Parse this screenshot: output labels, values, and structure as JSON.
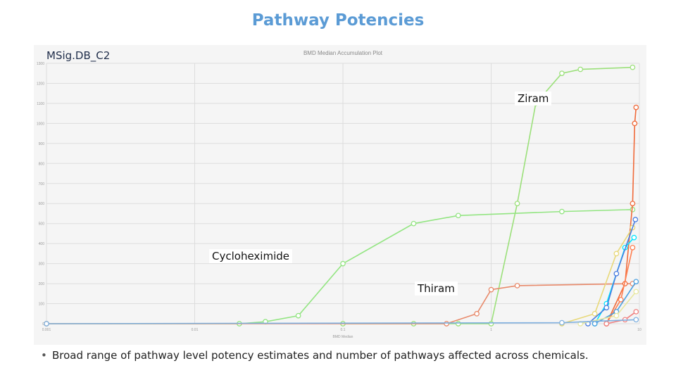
{
  "slide": {
    "title": "Pathway Potencies",
    "set_label": "MSig.DB_C2",
    "bullet": "Broad range of pathway level potency estimates and number of pathways affected across chemicals."
  },
  "chart_data": {
    "type": "line",
    "title": "BMD Median Accumulation Plot",
    "xlabel": "BMD Median",
    "ylabel": "",
    "x_scale": "log",
    "xlim": [
      0.001,
      10
    ],
    "ylim": [
      0,
      1300
    ],
    "grid": true,
    "annotations": [
      "Ziram",
      "Cycloheximide",
      "Thiram"
    ],
    "series": [
      {
        "name": "Ziram",
        "color": "#9be07a",
        "x": [
          0.1,
          0.3,
          0.6,
          1.0,
          1.5,
          2.0,
          3.0,
          4.0,
          9.0
        ],
        "y": [
          0,
          0,
          0,
          0,
          600,
          1100,
          1250,
          1270,
          1280
        ]
      },
      {
        "name": "Cycloheximide",
        "color": "#93e582",
        "x": [
          0.001,
          0.02,
          0.03,
          0.05,
          0.1,
          0.3,
          0.6,
          3.0,
          9.0
        ],
        "y": [
          0,
          0,
          10,
          40,
          300,
          500,
          540,
          560,
          570
        ]
      },
      {
        "name": "Thiram",
        "color": "#e8896a",
        "x": [
          0.001,
          0.5,
          0.8,
          1.0,
          1.5,
          9.0
        ],
        "y": [
          0,
          0,
          50,
          170,
          190,
          200
        ]
      },
      {
        "color": "#f06a3a",
        "x": [
          6.0,
          8.0,
          9.0,
          9.3,
          9.5
        ],
        "y": [
          0,
          200,
          600,
          1000,
          1080
        ]
      },
      {
        "color": "#e8d878",
        "x": [
          3.0,
          5.0,
          7.0,
          9.0
        ],
        "y": [
          0,
          50,
          350,
          480
        ]
      },
      {
        "color": "#00e5ff",
        "x": [
          5.0,
          6.0,
          8.0,
          9.2
        ],
        "y": [
          0,
          100,
          380,
          430
        ]
      },
      {
        "color": "#4a7de0",
        "x": [
          4.5,
          6.0,
          7.0,
          9.4
        ],
        "y": [
          0,
          80,
          250,
          520
        ]
      },
      {
        "color": "#ff7f50",
        "x": [
          6.0,
          7.5,
          9.0
        ],
        "y": [
          0,
          120,
          380
        ]
      },
      {
        "color": "#4aa0e0",
        "x": [
          5.0,
          7.0,
          9.5
        ],
        "y": [
          0,
          60,
          210
        ]
      },
      {
        "color": "#e8e8a0",
        "x": [
          4.0,
          7.0,
          9.5
        ],
        "y": [
          0,
          40,
          160
        ]
      },
      {
        "color": "#f08080",
        "x": [
          6.0,
          8.0,
          9.5
        ],
        "y": [
          0,
          20,
          60
        ]
      },
      {
        "color": "#7fb0e0",
        "x": [
          0.001,
          3.0,
          9.5
        ],
        "y": [
          0,
          5,
          20
        ]
      }
    ]
  }
}
